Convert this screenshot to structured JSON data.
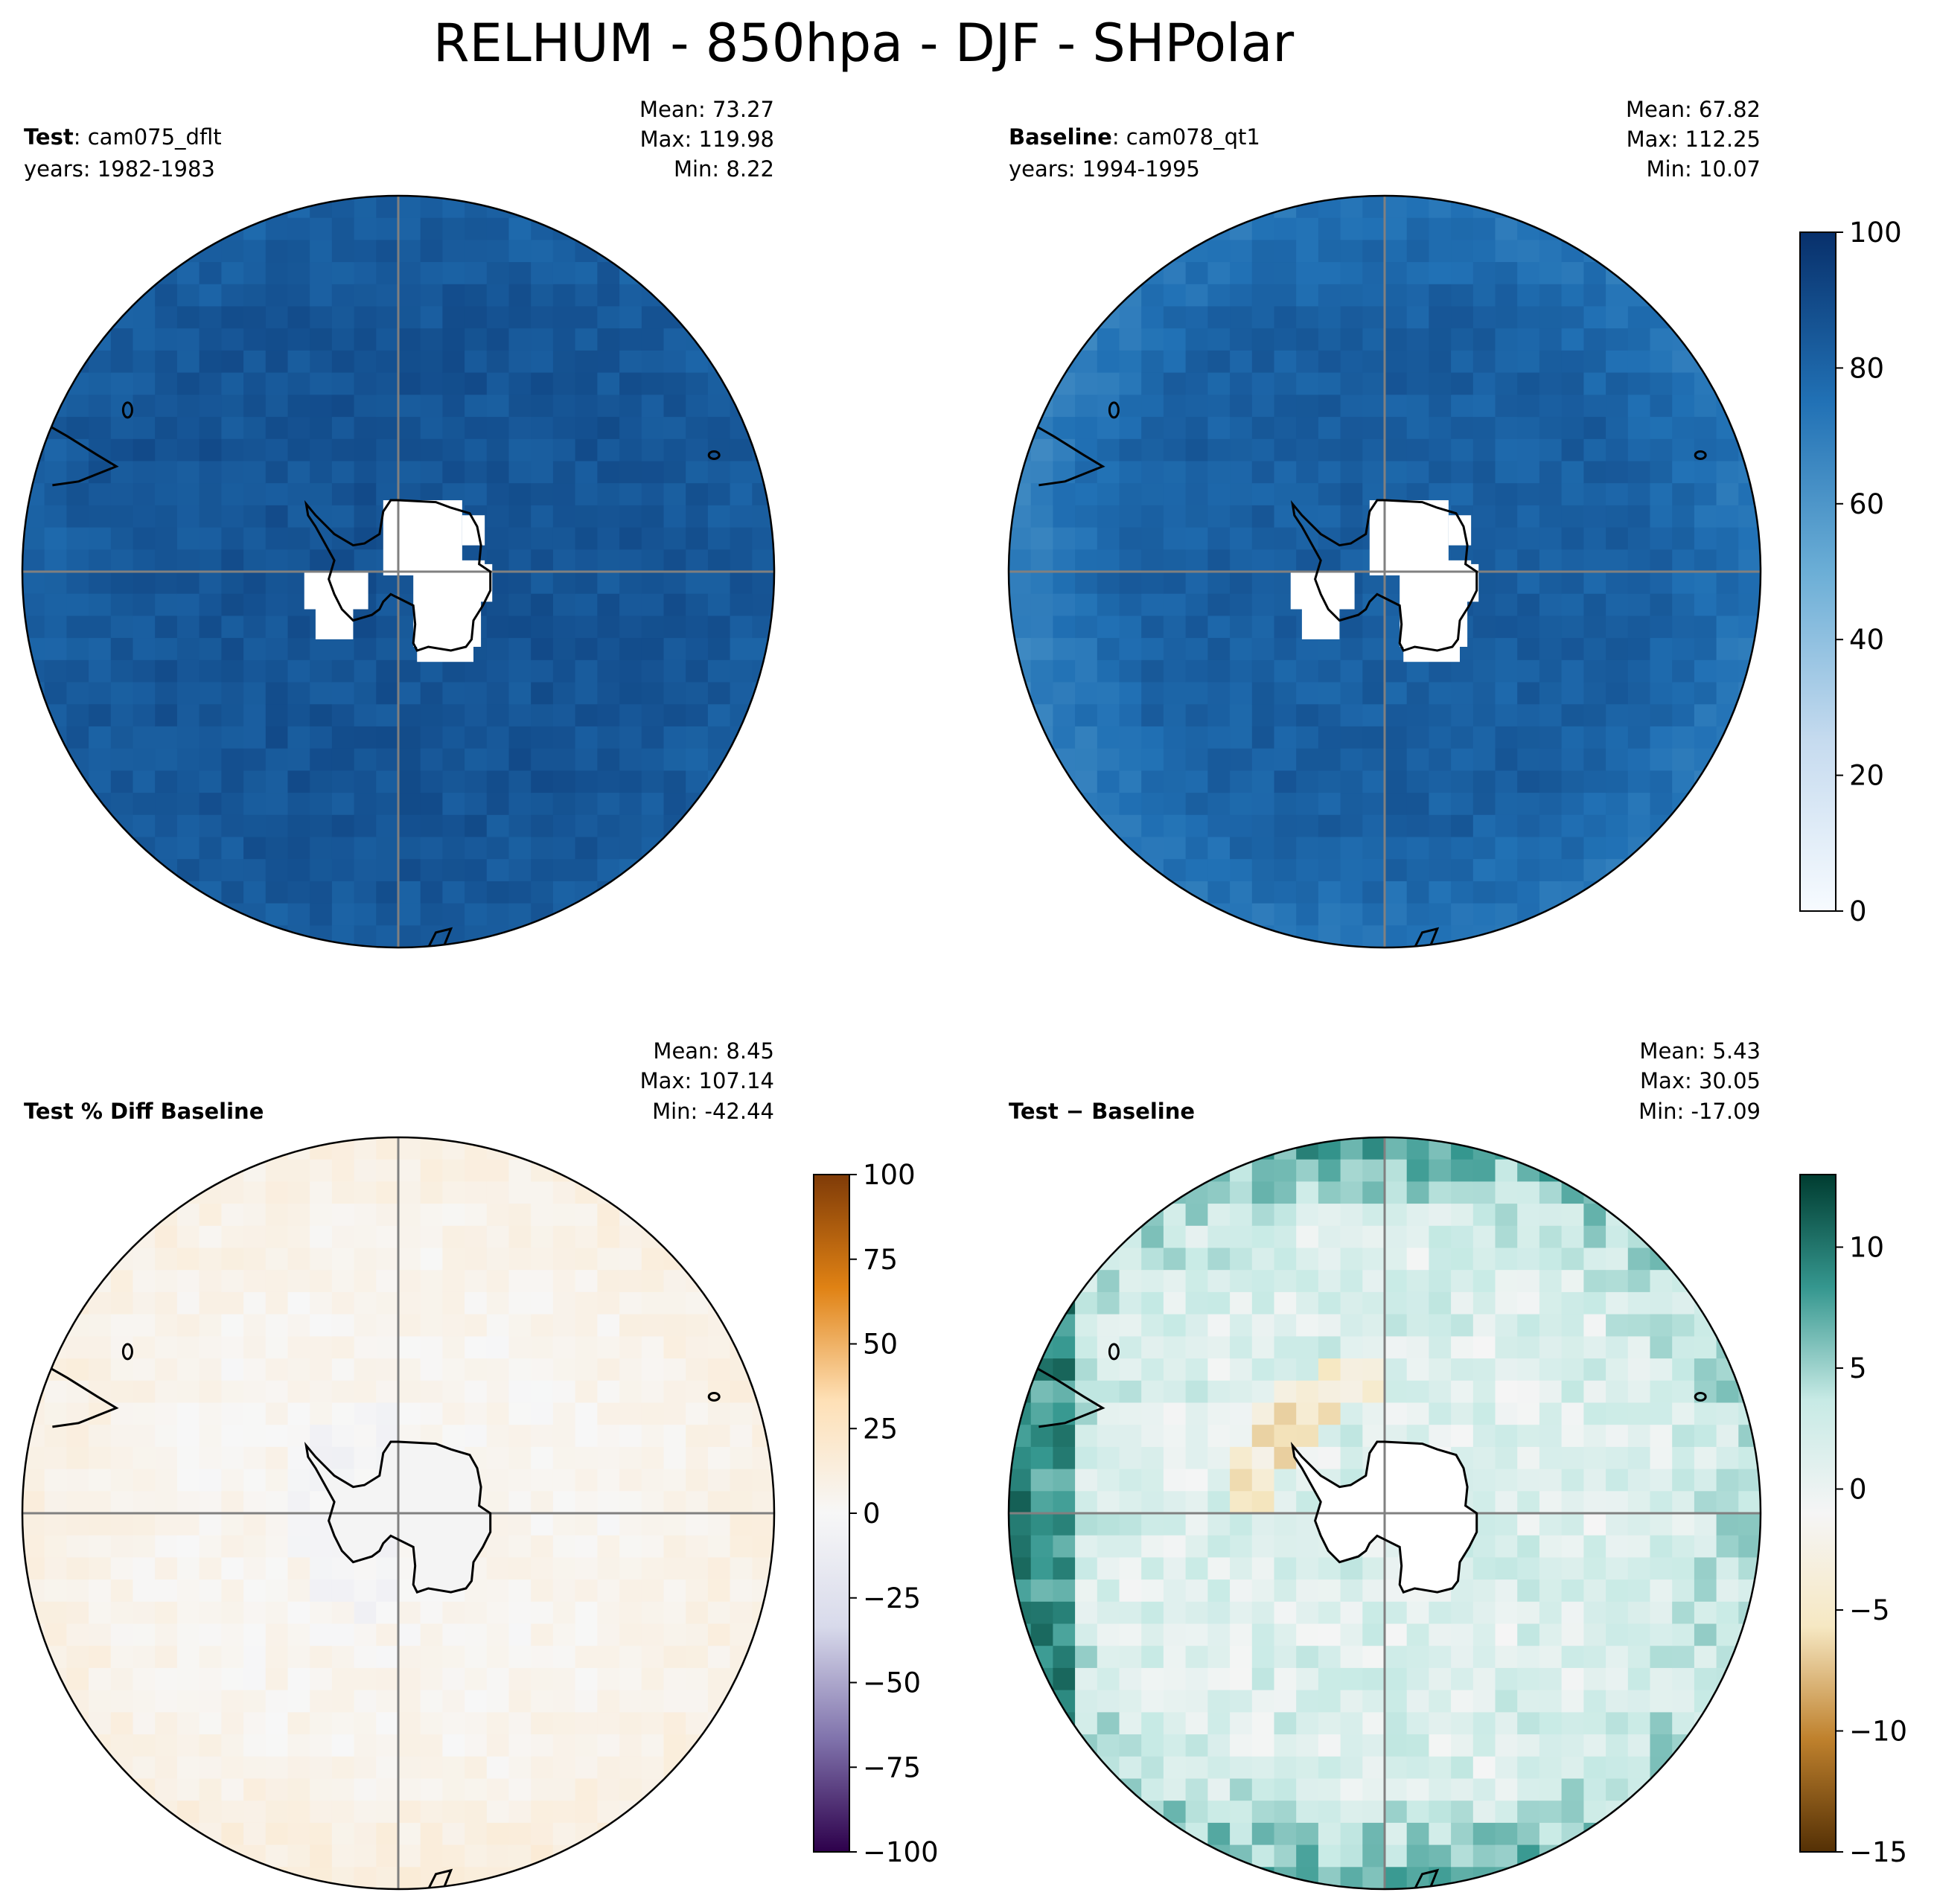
{
  "title": "RELHUM - 850hpa - DJF - SHPolar",
  "colors": {
    "blues": [
      "#f7fbff",
      "#c6dbef",
      "#6baed6",
      "#2171b5",
      "#08306b"
    ],
    "puor": [
      "#2d004b",
      "#8073ac",
      "#d8daeb",
      "#f7f7f7",
      "#fee0b6",
      "#e08214",
      "#7f3b08"
    ],
    "brbg": [
      "#543005",
      "#bf812d",
      "#f6e8c3",
      "#f5f5f5",
      "#c7eae5",
      "#35978f",
      "#003c30"
    ],
    "coast": "#000000",
    "gridline": "#808080"
  },
  "panels": [
    {
      "id": "test",
      "label_bold": "Test",
      "label_rest": ": cam075_dflt",
      "years": "years: 1982-1983",
      "stats": {
        "mean": "Mean: 73.27",
        "max": "Max: 119.98",
        "min": "Min:  8.22"
      },
      "colormap": "blues",
      "field": "abs_test"
    },
    {
      "id": "baseline",
      "label_bold": "Baseline",
      "label_rest": ": cam078_qt1",
      "years": "years: 1994-1995",
      "stats": {
        "mean": "Mean: 67.82",
        "max": "Max: 112.25",
        "min": "Min: 10.07"
      },
      "colormap": "blues",
      "field": "abs_base"
    },
    {
      "id": "pct-diff",
      "label_bold": "Test % Diff Baseline",
      "label_rest": "",
      "years": "",
      "stats": {
        "mean": "Mean:  8.45",
        "max": "Max: 107.14",
        "min": "Min: -42.44"
      },
      "colormap": "puor",
      "field": "pct"
    },
    {
      "id": "diff",
      "label_bold": "Test",
      "label_rest": " − Baseline",
      "years": "",
      "stats": {
        "mean": "Mean:  5.43",
        "max": "Max: 30.05",
        "min": "Min: -17.09"
      },
      "colormap": "brbg",
      "field": "diff"
    }
  ],
  "colorbars": [
    {
      "id": "cbar-abs",
      "colormap": "blues",
      "range": [
        0,
        100
      ],
      "ticks": [
        "0",
        "20",
        "40",
        "60",
        "80",
        "100"
      ]
    },
    {
      "id": "cbar-pct",
      "colormap": "puor",
      "range": [
        -100,
        100
      ],
      "ticks": [
        "−100",
        "−75",
        "−50",
        "−25",
        "0",
        "25",
        "50",
        "75",
        "100"
      ]
    },
    {
      "id": "cbar-diff",
      "colormap": "brbg",
      "range": [
        -15,
        13
      ],
      "ticks": [
        "−15",
        "−10",
        "−5",
        "0",
        "5",
        "10"
      ],
      "tick_values": [
        -15,
        -10,
        -5,
        0,
        5,
        10
      ]
    }
  ]
}
